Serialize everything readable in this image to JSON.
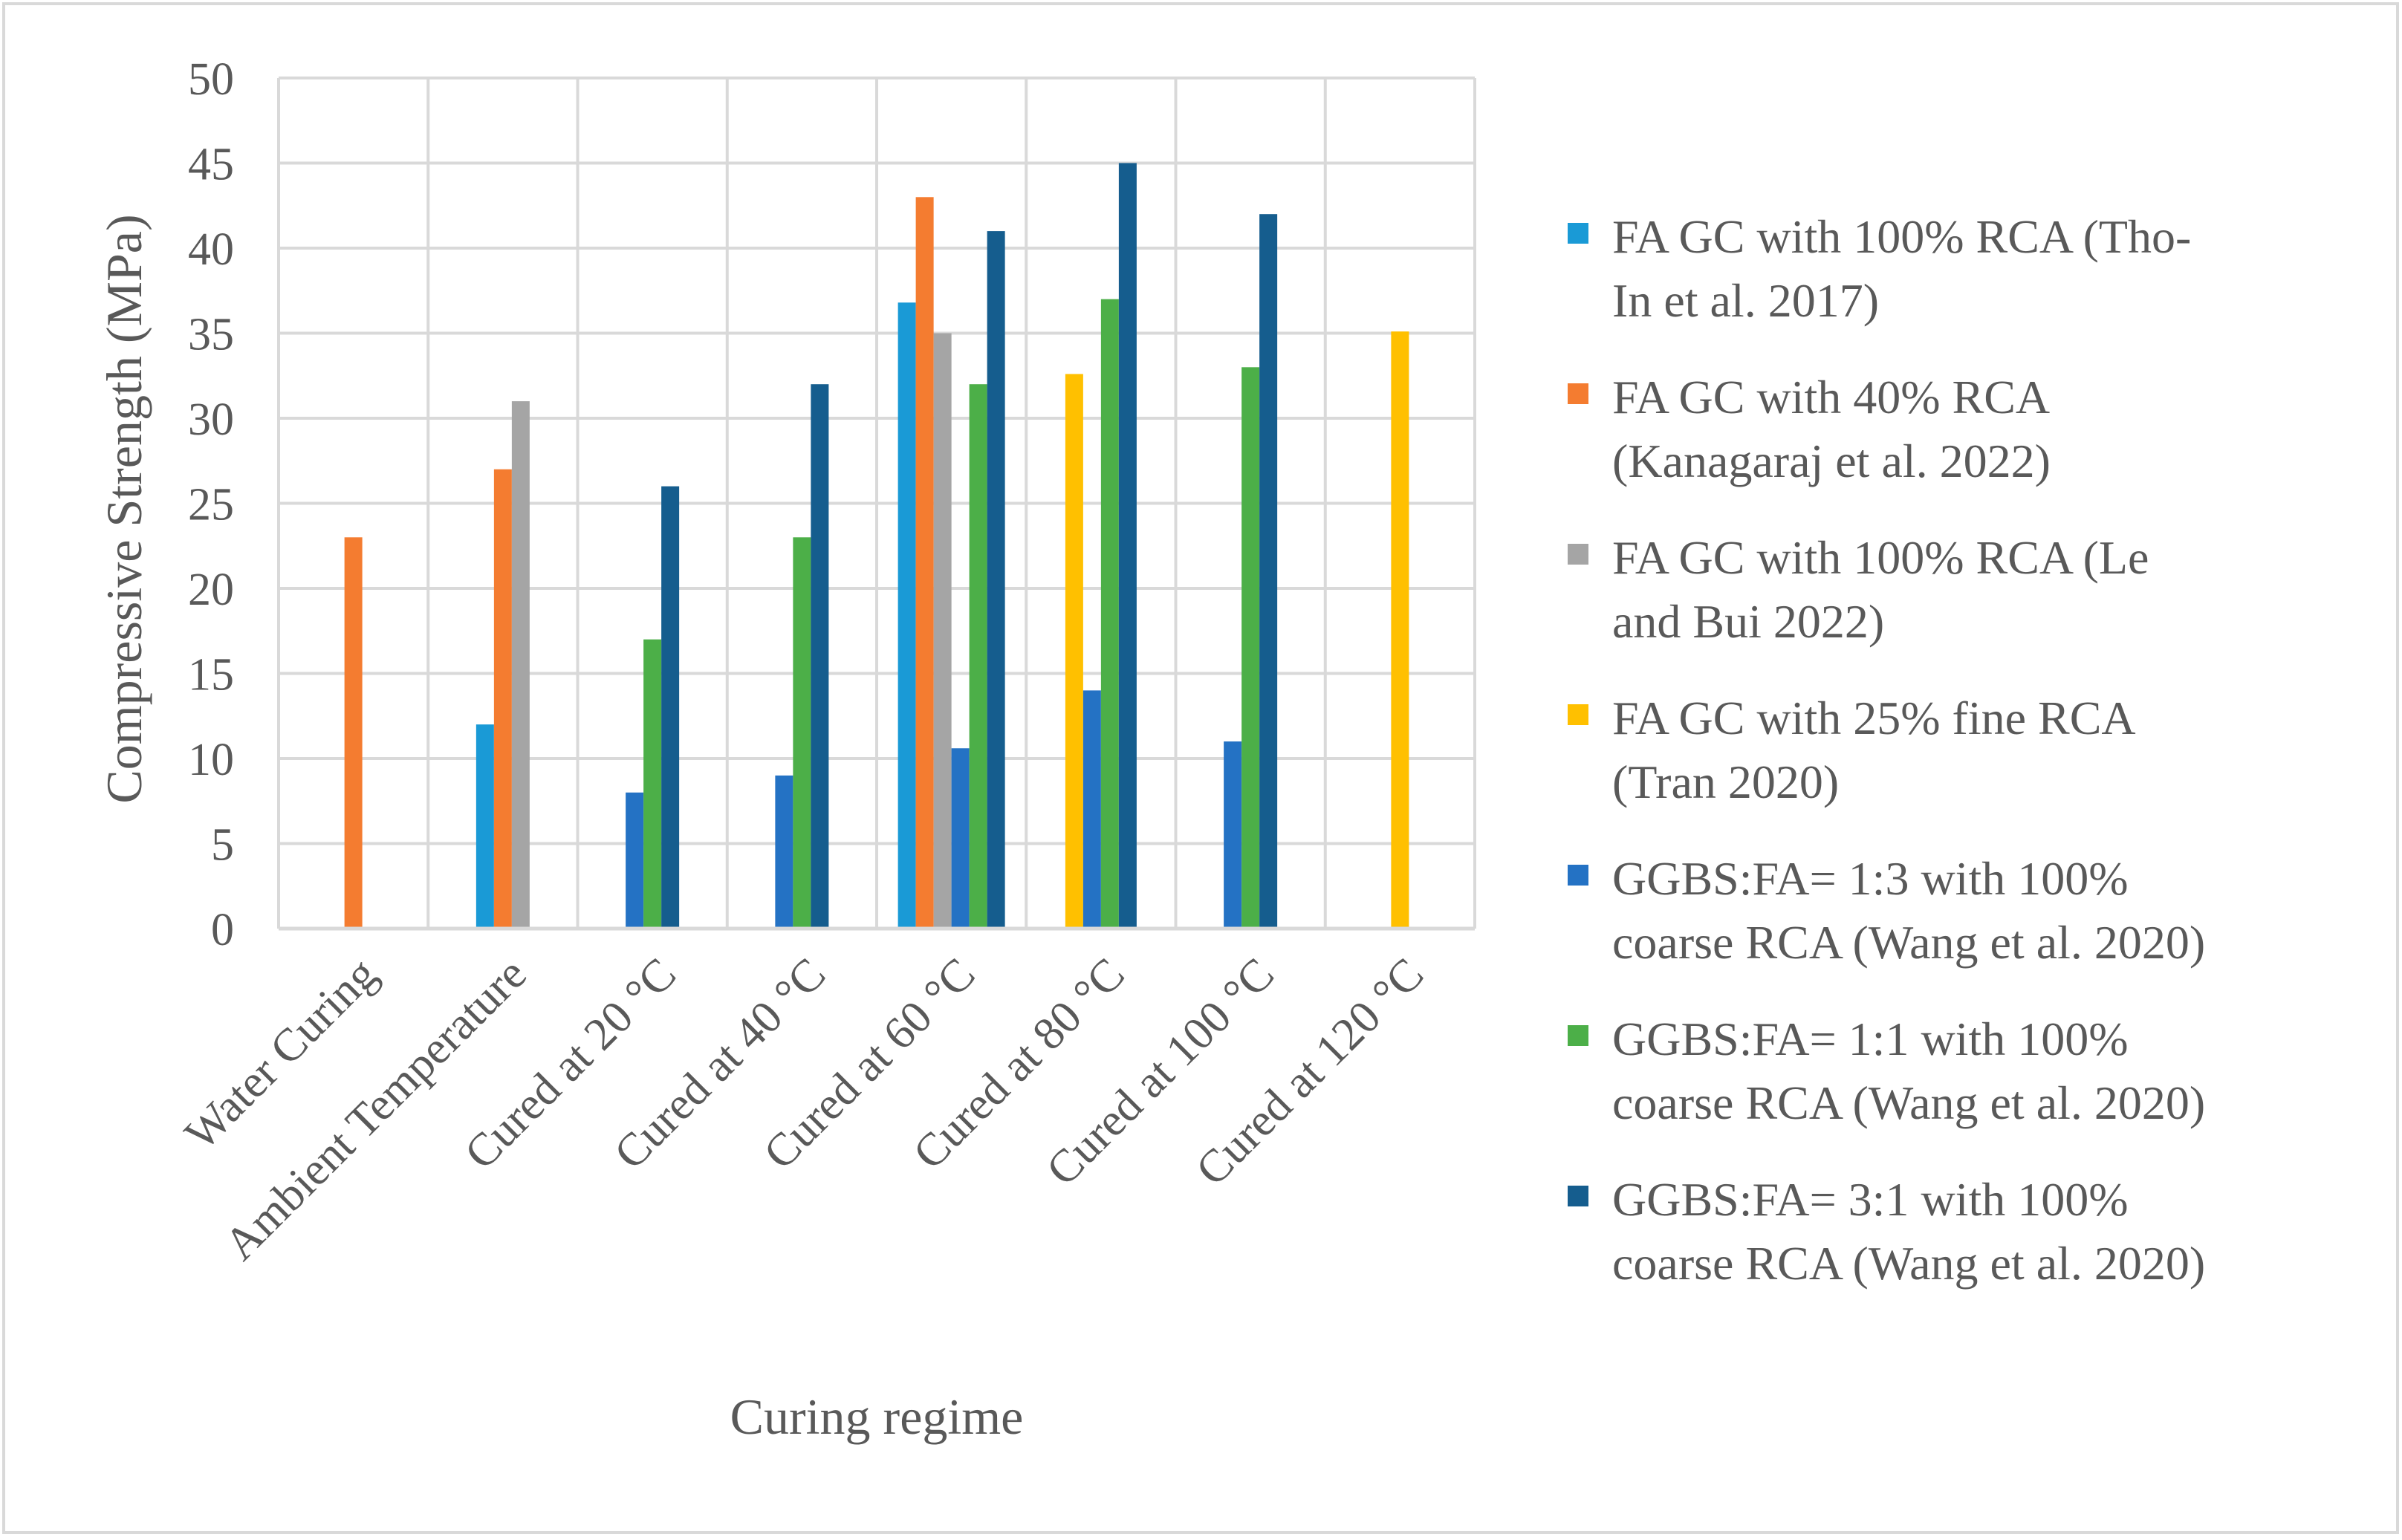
{
  "chart_data": {
    "type": "bar",
    "title": "",
    "xlabel": "Curing regime",
    "ylabel": "Compressive Strength (MPa)",
    "ylim": [
      0,
      50
    ],
    "yticks": [
      0,
      5,
      10,
      15,
      20,
      25,
      30,
      35,
      40,
      45,
      50
    ],
    "grid": true,
    "legend_position": "right",
    "categories": [
      "Water Curing",
      "Ambient Temperature",
      "Cured at 20 °C",
      "Cured at 40 °C",
      "Cured at 60 °C",
      "Cured at 80 °C",
      "Cured at 100 °C",
      "Cured at 120 °C"
    ],
    "series": [
      {
        "name": "FA GC with 100% RCA (Tho-In et al. 2017)",
        "legend_lines": [
          "FA GC with 100% RCA (Tho-",
          "In et al. 2017)"
        ],
        "color": "#1a9ad6",
        "values": [
          null,
          12,
          null,
          null,
          36.8,
          null,
          null,
          null
        ]
      },
      {
        "name": "FA GC with 40% RCA (Kanagaraj et al. 2022)",
        "legend_lines": [
          "FA GC with 40% RCA",
          "(Kanagaraj et al. 2022)"
        ],
        "color": "#f47c30",
        "values": [
          23,
          27,
          null,
          null,
          43,
          null,
          null,
          null
        ]
      },
      {
        "name": "FA GC with 100% RCA (Le and Bui 2022)",
        "legend_lines": [
          "FA GC with 100% RCA (Le",
          "and Bui 2022)"
        ],
        "color": "#a5a5a5",
        "values": [
          null,
          31,
          null,
          null,
          35,
          null,
          null,
          null
        ]
      },
      {
        "name": "FA GC with 25% fine RCA (Tran 2020)",
        "legend_lines": [
          "FA GC with 25% fine RCA",
          "(Tran 2020)"
        ],
        "color": "#ffc000",
        "values": [
          null,
          null,
          null,
          null,
          null,
          32.6,
          null,
          35.1
        ]
      },
      {
        "name": "GGBS:FA= 1:3 with 100% coarse RCA (Wang et al. 2020)",
        "legend_lines": [
          "GGBS:FA=  1:3 with 100%",
          "coarse RCA (Wang et al. 2020)"
        ],
        "color": "#2472c4",
        "values": [
          null,
          null,
          8,
          9,
          10.6,
          14,
          11,
          null
        ]
      },
      {
        "name": "GGBS:FA= 1:1 with 100% coarse RCA (Wang et al. 2020)",
        "legend_lines": [
          "GGBS:FA=  1:1 with 100%",
          "coarse RCA (Wang et al. 2020)"
        ],
        "color": "#4caf48",
        "values": [
          null,
          null,
          17,
          23,
          32,
          37,
          33,
          null
        ]
      },
      {
        "name": "GGBS:FA= 3:1 with 100% coarse RCA (Wang et al. 2020)",
        "legend_lines": [
          "GGBS:FA=  3:1 with 100%",
          "coarse RCA  (Wang et al. 2020)"
        ],
        "color": "#155d8e",
        "values": [
          null,
          null,
          26,
          32,
          41,
          45,
          42,
          null
        ]
      }
    ]
  }
}
